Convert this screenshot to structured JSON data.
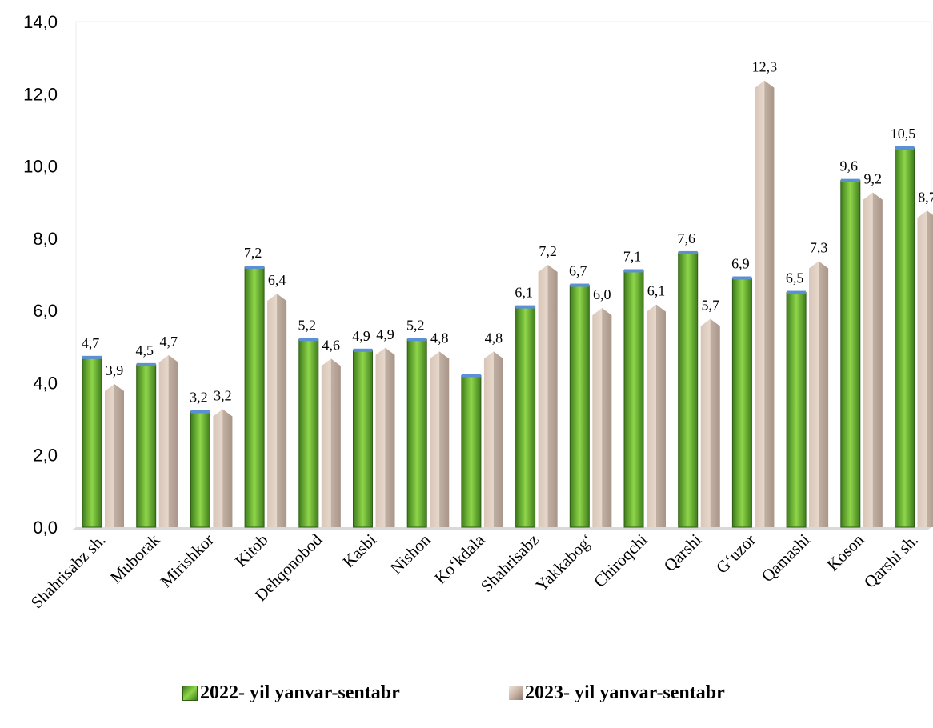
{
  "chart_data": {
    "type": "bar",
    "categories": [
      "Shahrisabz sh.",
      "Muborak",
      "Mirishkor",
      "Kitob",
      "Dehqonobod",
      "Kasbi",
      "Nishon",
      "Ko‘kdala",
      "Shahrisabz",
      "Yakkabog‘",
      "Chiroqchi",
      "Qarshi",
      "G‘uzor",
      "Qamashi",
      "Koson",
      "Qarshi sh."
    ],
    "series": [
      {
        "name": "2022- yil yanvar-sentabr",
        "color": "#6fb83a",
        "values": [
          4.7,
          4.5,
          3.2,
          7.2,
          5.2,
          4.9,
          5.2,
          4.2,
          6.1,
          6.7,
          7.1,
          7.6,
          6.9,
          6.5,
          9.6,
          10.5
        ],
        "data_labels": [
          "4,7",
          "4,5",
          "3,2",
          "7,2",
          "5,2",
          "4,9",
          "5,2",
          "",
          "6,1",
          "6,7",
          "7,1",
          "7,6",
          "6,9",
          "6,5",
          "9,6",
          "10,5"
        ]
      },
      {
        "name": "2023- yil yanvar-sentabr",
        "color": "#c9b3a6",
        "values": [
          3.9,
          4.7,
          3.2,
          6.4,
          4.6,
          4.9,
          4.8,
          4.8,
          7.2,
          6.0,
          6.1,
          5.7,
          12.3,
          7.3,
          9.2,
          8.7
        ],
        "data_labels": [
          "3,9",
          "4,7",
          "3,2",
          "6,4",
          "4,6",
          "4,9",
          "4,8",
          "4,8",
          "7,2",
          "6,0",
          "6,1",
          "5,7",
          "12,3",
          "7,3",
          "9,2",
          "8,7"
        ]
      }
    ],
    "yticks": [
      "0,0",
      "2,0",
      "4,0",
      "6,0",
      "8,0",
      "10,0",
      "12,0",
      "14,0"
    ],
    "ylim": [
      0,
      14
    ],
    "grid": false,
    "legend_position": "bottom",
    "title": "",
    "xlabel": "",
    "ylabel": ""
  }
}
